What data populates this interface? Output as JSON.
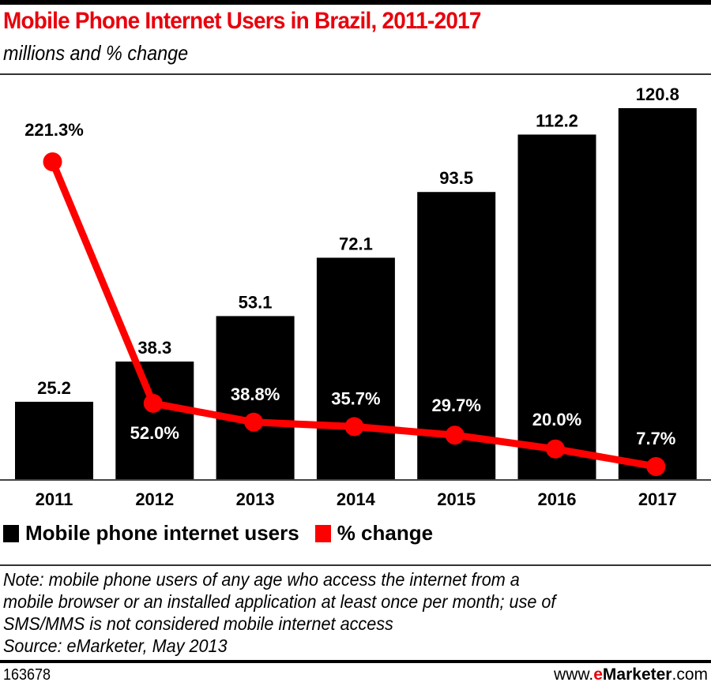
{
  "header": {
    "title": "Mobile Phone Internet Users in Brazil, 2011-2017",
    "subtitle": "millions and % change"
  },
  "colors": {
    "bar": "#000000",
    "line": "#ff0000",
    "title": "#e8000b"
  },
  "chart_data": {
    "type": "bar",
    "title": "Mobile Phone Internet Users in Brazil, 2011-2017",
    "subtitle": "millions and % change",
    "categories": [
      "2011",
      "2012",
      "2013",
      "2014",
      "2015",
      "2016",
      "2017"
    ],
    "series": [
      {
        "name": "Mobile phone internet users",
        "type": "bar",
        "unit": "millions",
        "values": [
          25.2,
          38.3,
          53.1,
          72.1,
          93.5,
          112.2,
          120.8
        ],
        "labels": [
          "25.2",
          "38.3",
          "53.1",
          "72.1",
          "93.5",
          "112.2",
          "120.8"
        ]
      },
      {
        "name": "% change",
        "type": "line",
        "unit": "%",
        "values": [
          221.3,
          52.0,
          38.8,
          35.7,
          29.7,
          20.0,
          7.7
        ],
        "labels": [
          "221.3%",
          "52.0%",
          "38.8%",
          "35.7%",
          "29.7%",
          "20.0%",
          "7.7%"
        ]
      }
    ],
    "xlabel": "",
    "ylabel": "",
    "ylim": [
      0,
      124
    ],
    "grid": false,
    "legend_position": "bottom-left"
  },
  "legend": [
    {
      "label": "Mobile phone internet users",
      "color": "#000000"
    },
    {
      "label": "% change",
      "color": "#ff0000"
    }
  ],
  "footer": {
    "note_lines": [
      "Note: mobile phone users of any age who access the internet from a",
      "mobile browser or an installed application at least once per month; use of",
      "SMS/MMS is not considered mobile internet access",
      "Source: eMarketer, May 2013"
    ],
    "chart_id": "163678",
    "brand_prefix": "www.",
    "brand_e": "e",
    "brand_name": "Marketer",
    "brand_suffix": ".com"
  }
}
